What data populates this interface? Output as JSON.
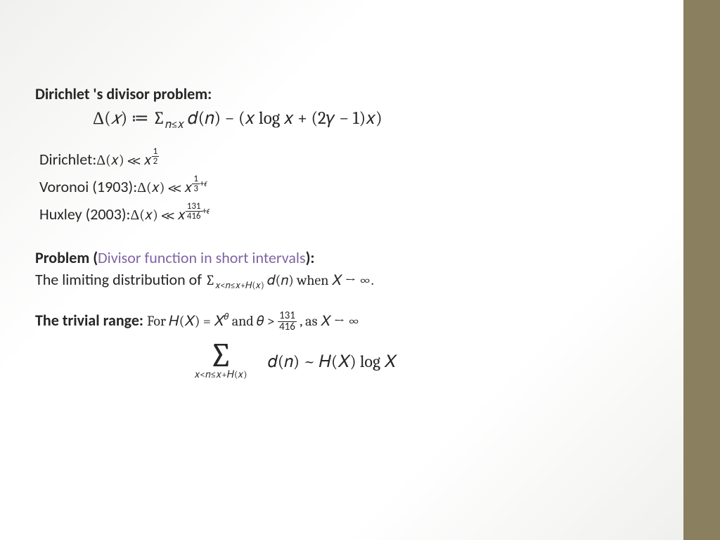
{
  "colors": {
    "sidebar": "#8a7f5e",
    "text": "#262626",
    "accent": "#8064a2",
    "bg_start": "#f0f0ee",
    "bg_mid": "#ffffff"
  },
  "title": "Dirichlet 's divisor problem:",
  "main_equation": "Δ(𝑥) ≔ ∑_{𝑛≤𝑥} 𝑑(𝑛) − (𝑥 log 𝑥 + (2𝛾 − 1)𝑥)",
  "bounds": [
    {
      "author": "Dirichlet:",
      "expr": "Δ(𝑥) ≪ 𝑥",
      "exp_num": "1",
      "exp_den": "2",
      "eps": ""
    },
    {
      "author": "Voronoi (1903):",
      "expr": "Δ(𝑥) ≪ 𝑥",
      "exp_num": "1",
      "exp_den": "3",
      "eps": "+𝜖"
    },
    {
      "author": "Huxley (2003):",
      "expr": "Δ(𝑥) ≪ 𝑥",
      "exp_num": "131",
      "exp_den": "416",
      "eps": "+𝜖"
    }
  ],
  "problem": {
    "prefix": "Problem (",
    "title": "Divisor function in short intervals",
    "suffix": "):",
    "text_before": "The limiting distribution of  ",
    "sum_sub": "𝑥<𝑛≤𝑥+𝐻(𝑥)",
    "sum_body": "𝑑(𝑛)",
    "text_after": " when 𝑋 → ∞."
  },
  "trivial": {
    "label": "The trivial range: ",
    "text1": "For 𝐻(𝑋) = 𝑋",
    "theta": "𝜃",
    "text2": " and 𝜃 > ",
    "frac_num": "131",
    "frac_den": "416",
    "text3": "  , as 𝑋 → ∞"
  },
  "final": {
    "sum_sub": "𝑥<𝑛≤𝑥+𝐻(𝑥)",
    "body": "𝑑(𝑛) ~ 𝐻(𝑋) log 𝑋"
  }
}
